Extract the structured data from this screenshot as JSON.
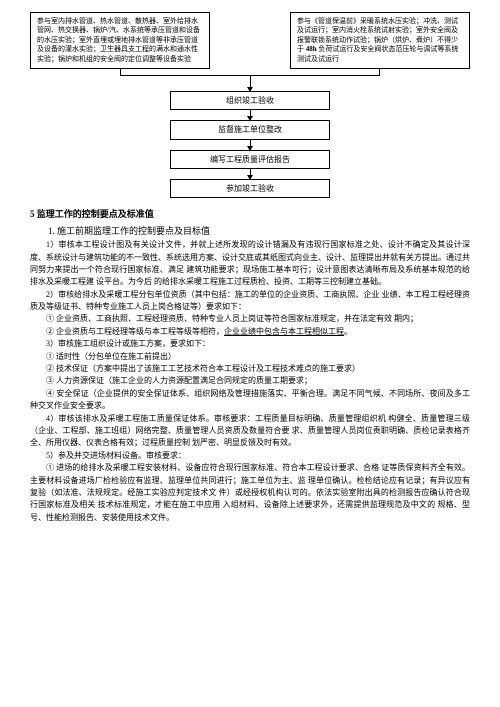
{
  "flowchart": {
    "left_box": "参与室内排水管道、热水管道、散热器、室外给排水管网、热交换器、锅炉/汽、水系统等承压管道和设备的水压实验；室外直埋或埋地排水管道等非承压管道及设备的灌水实验；卫生器具支工程的满水和通水性实验；锅炉和机组的安全阀的定位调整等设备实验",
    "right_box_a": "参与《管道保温前》采暖系统水压实验；冲洗、测试及试运行；室内消火栓系统试射实验；室外安全阀及报警联锁系统动作试验；锅炉",
    "right_box_b": "（烘炉、煮炉）不得少于",
    "right_box_c": "48h",
    "right_box_d": "负荷试运行及安全阀状态范压轮与调试等系统测试及试运行",
    "step1": "组织竣工验收",
    "step2": "监督施工单位整改",
    "step3": "编写工程质量评估报告",
    "step4": "参加竣工验收"
  },
  "title": "5 监理工作的控制要点及标准值",
  "sub1": "1.  施工前期监理工作的控制要点及目标值",
  "p1": "1）审核本工程设计图及有关设计文件，并就上述所发现的设计错漏及有违现行国家标准之处、设计不确定及其设计深度、系统设计与建筑功能的不一致性、系统选用方案、设计交底或其纸图式向业主、设计、监理提出并就有关方提出。通过共同努力来提出一个符合现行国家标准、满足 建筑功能要求；现场施工基本可行；设计意图表达清晰布局及系统基本规范的给排水及采暖工程建 设平台。为今后 的给排水采暖工程施工过程质检、投资、工期等三控制建立基础。",
  "p2": "2）审核给排水及采暖工程分包单位资质（其中包括：施工的单位的企业资质、工商执照、企业 业绩、本工程工程经理资质及等级证书、特种专业施工人员上岗合格证等）要求如下：",
  "li1": "① 企业资质、工商执照、工程经理资质、特种专业人员上岗证等符合国家标准规定，并在法定有效 期内；",
  "li2_a": "② 企业资质与工程经理等级与本工程等级等相符，",
  "li2_b": "企业业绩中包含与本工程相似工程",
  "li2_c": "。",
  "li3": "3）审核施工组织设计或施工方案，要求如下：",
  "li4": "① 适时性（分包单位在施工前提出）",
  "li5": "② 技术保证（方案中提出了该施工工艺技术符合本工程设计及工程技术难点的施工要求）",
  "li6": "③ 人力资源保证（施工企业的人力资源配置满足合同规定的质量工期要求；",
  "li7": "④ 安全保证（企业提供的安全保证体系、组织网络及管理措施落实、平衡合理。满足不同气候、不同场所、夜间及多工种交叉作业安全要求。",
  "p3": "4）审核该排水及采暖工程施工质量保证体系。审核要求：工程质量目标明确、质量管理组织机 构健全、质量管理三级（企业、工程部、施工班组）网络完整、质量管理人员资质及数量符合要 求、质量管理人员岗位责职明确、质检记录表格齐全、所用仪器、仪表合格有效；过程质量控制 划严密、明显反馈及时有效。",
  "p4": "5）参及并交进场材料设备。审核要求：",
  "p5": "① 进场的给排水及采暖工程安装材料、设备应符合现行国家标准、符合本工程设计要求、合格 证等质保资料齐全有效。主要材料设备进场厂检检验应有监理、监理单位共同进行；施工单位为主、监 理单位确认。检检结论应有记录；有异议应有复验（如法准、法规规定。经施工实验应判定技术文 件）或经授权机构认可的。依法实验室附出具的检测报告应确认符合现行国家标准及相关 技术标准规定，才能在施工中应用 入组材料、设备除上述要求外，还需提供监理规范及中文的 规格、型号、性能检测报告、安装使用技术文件。"
}
